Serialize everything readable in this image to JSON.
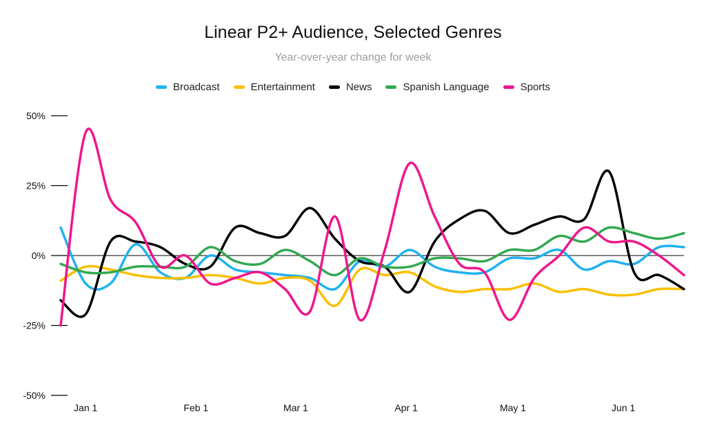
{
  "chart_data": {
    "type": "line",
    "title": "Linear P2+ Audience, Selected Genres",
    "subtitle": "Year-over-year change for week",
    "xlabel": "",
    "ylabel": "",
    "ylim": [
      -50,
      50
    ],
    "y_ticks": [
      "50%",
      "25%",
      "0%",
      "-25%",
      "-50%"
    ],
    "y_tick_values": [
      50,
      25,
      0,
      -25,
      -50
    ],
    "x_ticks": [
      "Jan 1",
      "Feb 1",
      "Mar 1",
      "Apr 1",
      "May 1",
      "Jun 1"
    ],
    "x_tick_values": [
      "2021-01-01",
      "2021-02-01",
      "2021-03-01",
      "2021-04-01",
      "2021-05-01",
      "2021-06-01"
    ],
    "x": [
      "2020-12-25",
      "2021-01-01",
      "2021-01-08",
      "2021-01-15",
      "2021-01-22",
      "2021-01-29",
      "2021-02-05",
      "2021-02-12",
      "2021-02-19",
      "2021-02-26",
      "2021-03-05",
      "2021-03-12",
      "2021-03-19",
      "2021-03-26",
      "2021-04-02",
      "2021-04-09",
      "2021-04-16",
      "2021-04-23",
      "2021-04-30",
      "2021-05-07",
      "2021-05-14",
      "2021-05-21",
      "2021-05-28",
      "2021-06-04",
      "2021-06-11",
      "2021-06-18"
    ],
    "xlim": [
      "2020-12-25",
      "2021-06-18"
    ],
    "legend_position": "top",
    "grid": false,
    "series": [
      {
        "name": "Broadcast",
        "color": "#1fb1f0",
        "values": [
          10,
          -10,
          -10,
          4,
          -6,
          -8,
          0,
          -5,
          -6,
          -7,
          -8,
          -12,
          -2,
          -4,
          2,
          -4,
          -6,
          -6,
          -1,
          -1,
          2,
          -5,
          -2,
          -3,
          3,
          3
        ]
      },
      {
        "name": "Entertainment",
        "color": "#fbbf00",
        "values": [
          -9,
          -4,
          -5,
          -7,
          -8,
          -8,
          -7,
          -8,
          -10,
          -8,
          -9,
          -18,
          -5,
          -7,
          -6,
          -11,
          -13,
          -12,
          -12,
          -10,
          -13,
          -12,
          -14,
          -14,
          -12,
          -12
        ]
      },
      {
        "name": "News",
        "color": "#000000",
        "values": [
          -16,
          -21,
          5,
          5,
          3,
          -3,
          -4,
          10,
          8,
          7,
          17,
          6,
          -2,
          -4,
          -13,
          5,
          13,
          16,
          8,
          11,
          14,
          13,
          30,
          -6,
          -7,
          -12
        ]
      },
      {
        "name": "Spanish Language",
        "color": "#33a852",
        "values": [
          -3,
          -6,
          -6,
          -4,
          -4,
          -4,
          3,
          -2,
          -3,
          2,
          -2,
          -7,
          -1,
          -4,
          -4,
          -1,
          -1,
          -2,
          2,
          2,
          7,
          5,
          10,
          8,
          6,
          8
        ]
      },
      {
        "name": "Sports",
        "color": "#f0168c",
        "values": [
          -25,
          44,
          20,
          12,
          -4,
          0,
          -10,
          -8,
          -6,
          -12,
          -20,
          14,
          -23,
          2,
          33,
          14,
          -3,
          -6,
          -23,
          -8,
          0,
          10,
          5,
          5,
          0,
          -7
        ]
      }
    ]
  }
}
